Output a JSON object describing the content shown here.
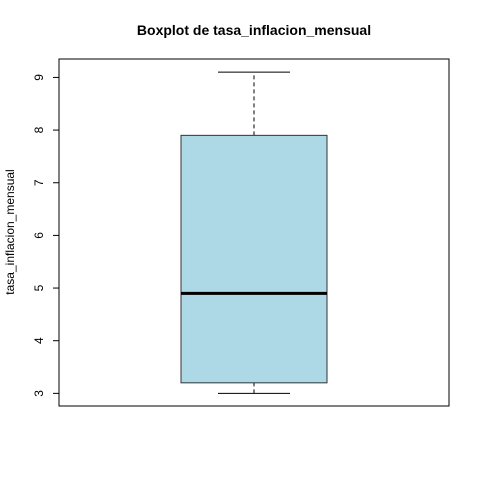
{
  "chart_data": {
    "type": "boxplot",
    "title": "Boxplot de tasa_inflacion_mensual",
    "ylabel": "tasa_inflacion_mensual",
    "xlabel": "",
    "ylim": [
      2.76,
      9.35
    ],
    "yticks": [
      3,
      4,
      5,
      6,
      7,
      8,
      9
    ],
    "box": {
      "whisker_low": 3.0,
      "q1": 3.2,
      "median": 4.9,
      "q3": 7.9,
      "whisker_high": 9.1
    },
    "colors": {
      "box_fill": "#ADD8E6",
      "box_stroke": "#333333",
      "median": "#000000"
    }
  }
}
